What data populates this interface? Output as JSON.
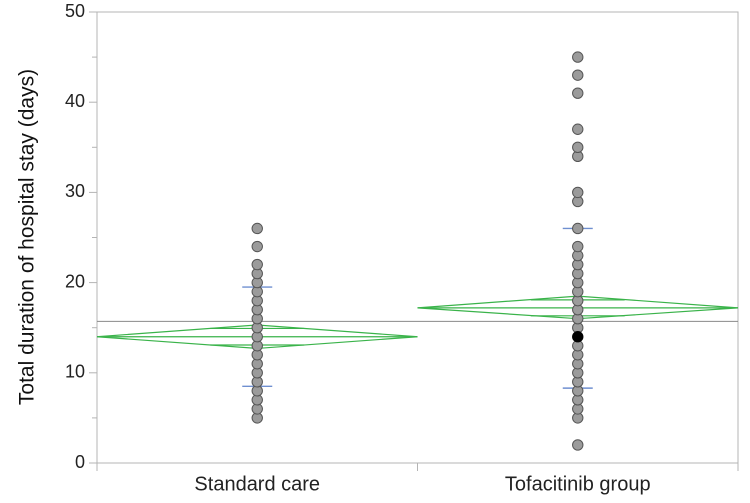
{
  "chart_data": {
    "type": "scatter",
    "subtype": "one-way strip plot with means diamonds",
    "title": "",
    "xlabel": "",
    "ylabel": "Total duration of hospital stay (days)",
    "ylim": [
      0,
      50
    ],
    "yticks": [
      0,
      10,
      20,
      30,
      40,
      50
    ],
    "categories": [
      "Standard care",
      "Tofacitinib group"
    ],
    "grand_mean": 15.7,
    "groups": [
      {
        "name": "Standard care",
        "values": [
          5,
          6,
          7,
          8,
          9,
          10,
          11,
          12,
          13,
          14,
          15,
          16,
          17,
          18,
          19,
          20,
          21,
          22,
          24,
          26
        ],
        "highlighted": [],
        "mean": 14.0,
        "ci_lower": 12.7,
        "ci_upper": 15.3,
        "sd_lower": 8.5,
        "sd_upper": 19.5
      },
      {
        "name": "Tofacitinib group",
        "values": [
          2,
          5,
          6,
          7,
          8,
          9,
          10,
          11,
          12,
          13,
          15,
          16,
          17,
          18,
          19,
          20,
          21,
          22,
          23,
          24,
          26,
          29,
          30,
          34,
          35,
          37,
          41,
          43,
          45
        ],
        "highlighted": [
          14
        ],
        "mean": 17.2,
        "ci_lower": 16.0,
        "ci_upper": 18.5,
        "sd_lower": 8.3,
        "sd_upper": 26.0
      }
    ],
    "colors": {
      "point_fill": "#9b9b9b",
      "point_stroke": "#555555",
      "highlight_fill": "#000000",
      "diamond": "#3ab34a",
      "sd_marker": "#6f8fd0",
      "grand_mean_line": "#8a8a8a",
      "axis": "#b4b4b4"
    }
  }
}
